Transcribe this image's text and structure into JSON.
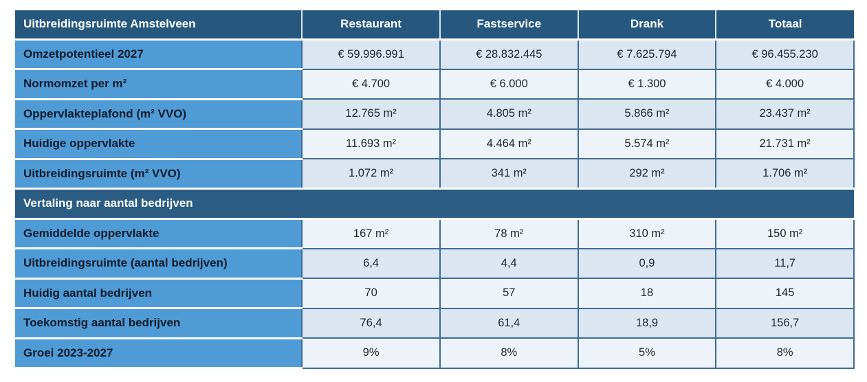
{
  "colors": {
    "header_bg": "#26587f",
    "section_bg": "#2a5c84",
    "label_bg": "#4f9bd5",
    "band_a": "#dbe6f1",
    "band_b": "#edf3f9",
    "cell_border": "#3d6c99",
    "header_text": "#ffffff",
    "label_text": "#0e1b2c",
    "value_text": "#23272f"
  },
  "table": {
    "title": "Uitbreidingsruimte Amstelveen",
    "columns": [
      "Restaurant",
      "Fastservice",
      "Drank",
      "Totaal"
    ],
    "sections": [
      {
        "header": null,
        "rows": [
          {
            "label": "Omzetpotentieel 2027",
            "values": [
              "€ 59.996.991",
              "€ 28.832.445",
              "€ 7.625.794",
              "€ 96.455.230"
            ]
          },
          {
            "label": "Normomzet per m²",
            "values": [
              "€ 4.700",
              "€ 6.000",
              "€ 1.300",
              "€ 4.000"
            ]
          },
          {
            "label": "Oppervlakteplafond (m² VVO)",
            "values": [
              "12.765 m²",
              "4.805 m²",
              "5.866 m²",
              "23.437 m²"
            ]
          },
          {
            "label": "Huidige oppervlakte",
            "values": [
              "11.693 m²",
              "4.464 m²",
              "5.574 m²",
              "21.731 m²"
            ]
          },
          {
            "label": "Uitbreidingsruimte (m² VVO)",
            "values": [
              "1.072 m²",
              "341 m²",
              "292 m²",
              "1.706 m²"
            ]
          }
        ]
      },
      {
        "header": "Vertaling naar aantal bedrijven",
        "rows": [
          {
            "label": "Gemiddelde oppervlakte",
            "values": [
              "167 m²",
              "78 m²",
              "310 m²",
              "150 m²"
            ]
          },
          {
            "label": "Uitbreidingsruimte (aantal bedrijven)",
            "values": [
              "6,4",
              "4,4",
              "0,9",
              "11,7"
            ]
          },
          {
            "label": "Huidig aantal bedrijven",
            "values": [
              "70",
              "57",
              "18",
              "145"
            ]
          },
          {
            "label": "Toekomstig aantal bedrijven",
            "values": [
              "76,4",
              "61,4",
              "18,9",
              "156,7"
            ]
          },
          {
            "label": "Groei 2023-2027",
            "values": [
              "9%",
              "8%",
              "5%",
              "8%"
            ]
          }
        ]
      }
    ]
  },
  "chart_data": {
    "type": "table",
    "title": "Uitbreidingsruimte Amstelveen",
    "categories": [
      "Restaurant",
      "Fastservice",
      "Drank",
      "Totaal"
    ],
    "series": [
      {
        "name": "Omzetpotentieel 2027",
        "values": [
          59996991,
          28832445,
          7625794,
          96455230
        ]
      },
      {
        "name": "Normomzet per m²",
        "values": [
          4700,
          6000,
          1300,
          4000
        ]
      },
      {
        "name": "Oppervlakteplafond (m² VVO)",
        "values": [
          12765,
          4805,
          5866,
          23437
        ]
      },
      {
        "name": "Huidige oppervlakte",
        "values": [
          11693,
          4464,
          5574,
          21731
        ]
      },
      {
        "name": "Uitbreidingsruimte (m² VVO)",
        "values": [
          1072,
          341,
          292,
          1706
        ]
      },
      {
        "name": "Gemiddelde oppervlakte",
        "values": [
          167,
          78,
          310,
          150
        ]
      },
      {
        "name": "Uitbreidingsruimte (aantal bedrijven)",
        "values": [
          6.4,
          4.4,
          0.9,
          11.7
        ]
      },
      {
        "name": "Huidig aantal bedrijven",
        "values": [
          70,
          57,
          18,
          145
        ]
      },
      {
        "name": "Toekomstig aantal bedrijven",
        "values": [
          76.4,
          61.4,
          18.9,
          156.7
        ]
      },
      {
        "name": "Groei 2023-2027 (%)",
        "values": [
          9,
          8,
          5,
          8
        ]
      }
    ]
  }
}
